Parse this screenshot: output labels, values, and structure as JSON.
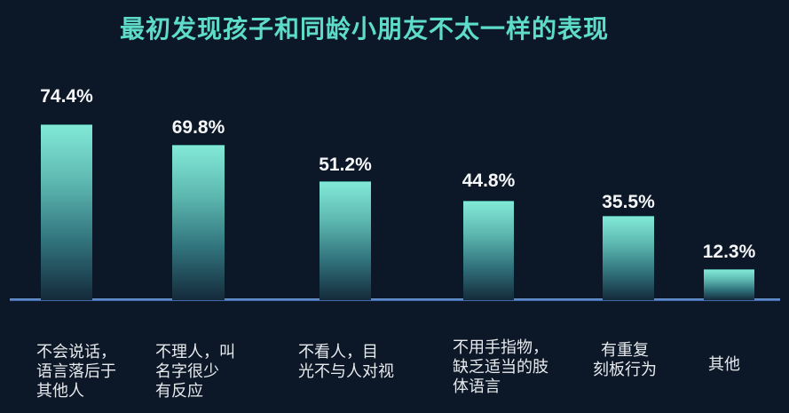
{
  "title": {
    "text": "最初发现孩子和同龄小朋友不太一样的表现",
    "color": "#5edcca"
  },
  "colors": {
    "background": "#0c1727",
    "bar_gradient_top": "#82e9d6",
    "bar_gradient_bottom": "#142a3b",
    "axis_line": "#4d7cc0",
    "value_label": "#f5f7f9",
    "category_label": "#e7eaed"
  },
  "chart_data": {
    "type": "bar",
    "title": "最初发现孩子和同龄小朋友不太一样的表现",
    "orientation": "vertical",
    "unit": "%",
    "grid": false,
    "legend": false,
    "xlabel": "",
    "ylabel": "",
    "ylim": [
      0,
      80
    ],
    "categories": [
      "不会说话，语言落后于其他人",
      "不理人，叫名字很少有反应",
      "不看人，目光不与人对视",
      "不用手指物，缺乏适当的肢体语言",
      "有重复刻板行为",
      "其他"
    ],
    "category_lines": [
      [
        "不会说话，",
        "语言落后于",
        "其他人"
      ],
      [
        "不理人，叫",
        "名字很少",
        "有反应"
      ],
      [
        "不看人，目",
        "光不与人对视"
      ],
      [
        "不用手指物，",
        "缺乏适当的肢",
        "体语言"
      ],
      [
        "有重复",
        "刻板行为"
      ],
      [
        "其他"
      ]
    ],
    "values": [
      74.4,
      69.8,
      51.2,
      44.8,
      35.5,
      12.3
    ],
    "value_labels": [
      "74.4%",
      "69.8%",
      "51.2%",
      "44.8%",
      "35.5%",
      "12.3%"
    ]
  }
}
